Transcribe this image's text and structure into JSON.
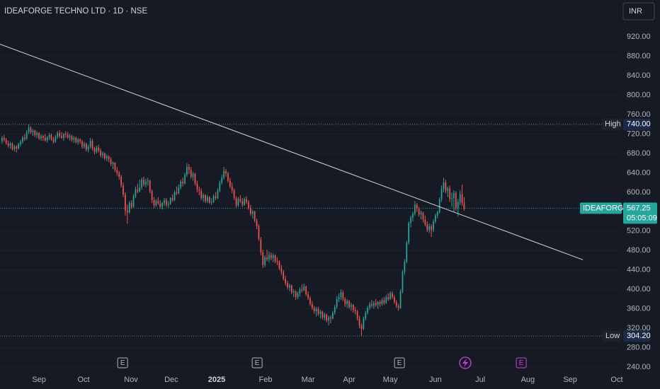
{
  "chart_data": {
    "type": "candlestick",
    "title": "IDEAFORGE TECHNO LTD · 1D · NSE",
    "currency": "INR",
    "symbol": "IDEAFORGE",
    "countdown": "05:05:09",
    "up_color": "#26a69a",
    "down_color": "#ef5350",
    "xlim": [
      -1,
      300
    ],
    "ylim": [
      224,
      996
    ],
    "yticks": [
      {
        "value": 240,
        "label": "240.00"
      },
      {
        "value": 280,
        "label": "280.00"
      },
      {
        "value": 320,
        "label": "320.00"
      },
      {
        "value": 360,
        "label": "360.00"
      },
      {
        "value": 400,
        "label": "400.00"
      },
      {
        "value": 440,
        "label": "440.00"
      },
      {
        "value": 480,
        "label": "480.00"
      },
      {
        "value": 520,
        "label": "520.00"
      },
      {
        "value": 560,
        "label": "560.00"
      },
      {
        "value": 600,
        "label": "600.00"
      },
      {
        "value": 640,
        "label": "640.00"
      },
      {
        "value": 680,
        "label": "680.00"
      },
      {
        "value": 720,
        "label": "720.00"
      },
      {
        "value": 760,
        "label": "760.00"
      },
      {
        "value": 800,
        "label": "800.00"
      },
      {
        "value": 840,
        "label": "840.00"
      },
      {
        "value": 880,
        "label": "880.00"
      },
      {
        "value": 920,
        "label": "920.00"
      }
    ],
    "xticks": [
      {
        "value": 18,
        "label": "Sep"
      },
      {
        "value": 39.7,
        "label": "Oct"
      },
      {
        "value": 62.8,
        "label": "Nov"
      },
      {
        "value": 82.4,
        "label": "Dec"
      },
      {
        "value": 104.5,
        "label": "2025"
      },
      {
        "value": 128.3,
        "label": "Feb"
      },
      {
        "value": 149,
        "label": "Mar"
      },
      {
        "value": 169,
        "label": "Apr"
      },
      {
        "value": 189,
        "label": "May"
      },
      {
        "value": 211,
        "label": "Jun"
      },
      {
        "value": 232.8,
        "label": "Jul"
      },
      {
        "value": 256,
        "label": "Aug"
      },
      {
        "value": 276.6,
        "label": "Sep"
      },
      {
        "value": 299.3,
        "label": "Oct"
      }
    ],
    "high": {
      "label": "High",
      "value": 740,
      "value_label": "740.00"
    },
    "low": {
      "label": "Low",
      "value": 304.2,
      "value_label": "304.20"
    },
    "last": {
      "value": 567.25,
      "value_label": "567.25"
    },
    "trendline": {
      "x": [
        -1,
        282.8
      ],
      "y": [
        905,
        461
      ]
    },
    "events": [
      {
        "label": "E",
        "x": 58.7,
        "color": "#b2b5be"
      },
      {
        "label": "E",
        "x": 124.2,
        "color": "#b2b5be"
      },
      {
        "label": "E",
        "x": 193.5,
        "color": "#b2b5be"
      },
      {
        "label": "E",
        "x": 252.8,
        "color": "#d13fd3"
      }
    ],
    "candles": [
      [
        705,
        716,
        700,
        712
      ],
      [
        712,
        718,
        704,
        708
      ],
      [
        708,
        712,
        698,
        701
      ],
      [
        701,
        706,
        692,
        696
      ],
      [
        696,
        704,
        690,
        700
      ],
      [
        700,
        703,
        686,
        689
      ],
      [
        689,
        698,
        684,
        694
      ],
      [
        694,
        697,
        682,
        690
      ],
      [
        690,
        702,
        688,
        699
      ],
      [
        699,
        708,
        694,
        704
      ],
      [
        704,
        716,
        700,
        713
      ],
      [
        713,
        720,
        706,
        710
      ],
      [
        710,
        728,
        708,
        724
      ],
      [
        724,
        740,
        720,
        733
      ],
      [
        733,
        736,
        720,
        724
      ],
      [
        724,
        730,
        716,
        727
      ],
      [
        727,
        729,
        714,
        718
      ],
      [
        718,
        726,
        712,
        722
      ],
      [
        722,
        724,
        708,
        711
      ],
      [
        711,
        720,
        706,
        716
      ],
      [
        716,
        718,
        706,
        712
      ],
      [
        712,
        720,
        704,
        707
      ],
      [
        707,
        716,
        702,
        713
      ],
      [
        713,
        722,
        708,
        718
      ],
      [
        718,
        721,
        706,
        709
      ],
      [
        709,
        714,
        700,
        704
      ],
      [
        704,
        718,
        702,
        714
      ],
      [
        714,
        726,
        710,
        722
      ],
      [
        722,
        728,
        712,
        716
      ],
      [
        716,
        724,
        710,
        712
      ],
      [
        712,
        722,
        706,
        720
      ],
      [
        720,
        726,
        712,
        719
      ],
      [
        719,
        724,
        710,
        713
      ],
      [
        713,
        720,
        706,
        716
      ],
      [
        716,
        718,
        704,
        708
      ],
      [
        708,
        716,
        702,
        712
      ],
      [
        712,
        715,
        700,
        703
      ],
      [
        703,
        712,
        698,
        709
      ],
      [
        709,
        711,
        700,
        705
      ],
      [
        705,
        708,
        690,
        694
      ],
      [
        694,
        704,
        690,
        700
      ],
      [
        700,
        702,
        684,
        688
      ],
      [
        688,
        698,
        682,
        694
      ],
      [
        694,
        712,
        690,
        706
      ],
      [
        706,
        710,
        686,
        690
      ],
      [
        690,
        694,
        678,
        683
      ],
      [
        683,
        696,
        680,
        692
      ],
      [
        692,
        698,
        682,
        686
      ],
      [
        686,
        690,
        672,
        676
      ],
      [
        676,
        684,
        670,
        680
      ],
      [
        680,
        682,
        666,
        670
      ],
      [
        670,
        678,
        664,
        674
      ],
      [
        674,
        676,
        662,
        668
      ],
      [
        668,
        672,
        654,
        658
      ],
      [
        658,
        664,
        648,
        661
      ],
      [
        661,
        662,
        642,
        646
      ],
      [
        646,
        652,
        634,
        640
      ],
      [
        640,
        644,
        626,
        632
      ],
      [
        632,
        636,
        610,
        614
      ],
      [
        614,
        620,
        590,
        595
      ],
      [
        595,
        600,
        552,
        562
      ],
      [
        562,
        575,
        535,
        559
      ],
      [
        559,
        582,
        556,
        578
      ],
      [
        578,
        584,
        566,
        570
      ],
      [
        570,
        596,
        568,
        592
      ],
      [
        592,
        612,
        588,
        606
      ],
      [
        606,
        618,
        598,
        602
      ],
      [
        602,
        626,
        600,
        610
      ],
      [
        610,
        630,
        605,
        626
      ],
      [
        626,
        632,
        612,
        616
      ],
      [
        616,
        628,
        610,
        622
      ],
      [
        622,
        630,
        614,
        624
      ],
      [
        624,
        626,
        598,
        602
      ],
      [
        602,
        606,
        578,
        584
      ],
      [
        584,
        590,
        568,
        573
      ],
      [
        573,
        586,
        570,
        582
      ],
      [
        582,
        590,
        574,
        577
      ],
      [
        577,
        584,
        566,
        570
      ],
      [
        570,
        580,
        564,
        578
      ],
      [
        578,
        588,
        572,
        584
      ],
      [
        584,
        588,
        570,
        574
      ],
      [
        574,
        582,
        568,
        576
      ],
      [
        576,
        590,
        574,
        588
      ],
      [
        588,
        596,
        580,
        584
      ],
      [
        584,
        604,
        582,
        600
      ],
      [
        600,
        612,
        594,
        598
      ],
      [
        598,
        616,
        596,
        610
      ],
      [
        610,
        626,
        606,
        622
      ],
      [
        622,
        630,
        612,
        618
      ],
      [
        618,
        640,
        616,
        636
      ],
      [
        636,
        660,
        632,
        652
      ],
      [
        652,
        658,
        638,
        646
      ],
      [
        646,
        652,
        628,
        632
      ],
      [
        632,
        642,
        624,
        638
      ],
      [
        638,
        640,
        614,
        618
      ],
      [
        618,
        624,
        600,
        606
      ],
      [
        606,
        612,
        594,
        603
      ],
      [
        603,
        608,
        584,
        588
      ],
      [
        588,
        598,
        580,
        594
      ],
      [
        594,
        596,
        578,
        582
      ],
      [
        582,
        594,
        578,
        590
      ],
      [
        590,
        592,
        576,
        579
      ],
      [
        579,
        588,
        574,
        580
      ],
      [
        580,
        596,
        578,
        592
      ],
      [
        592,
        600,
        584,
        588
      ],
      [
        588,
        608,
        586,
        603
      ],
      [
        603,
        624,
        600,
        620
      ],
      [
        620,
        636,
        616,
        630
      ],
      [
        630,
        652,
        626,
        644
      ],
      [
        644,
        648,
        632,
        639
      ],
      [
        639,
        642,
        620,
        624
      ],
      [
        624,
        630,
        608,
        612
      ],
      [
        612,
        620,
        598,
        604
      ],
      [
        604,
        608,
        584,
        588
      ],
      [
        588,
        592,
        568,
        573
      ],
      [
        573,
        590,
        570,
        586
      ],
      [
        586,
        594,
        578,
        582
      ],
      [
        582,
        588,
        570,
        574
      ],
      [
        574,
        590,
        572,
        586
      ],
      [
        586,
        592,
        576,
        580
      ],
      [
        580,
        584,
        564,
        568
      ],
      [
        568,
        574,
        552,
        556
      ],
      [
        556,
        564,
        546,
        560
      ],
      [
        560,
        562,
        538,
        542
      ],
      [
        542,
        546,
        524,
        530
      ],
      [
        530,
        534,
        500,
        504
      ],
      [
        504,
        508,
        470,
        476
      ],
      [
        476,
        482,
        444,
        450
      ],
      [
        450,
        470,
        446,
        466
      ],
      [
        466,
        482,
        458,
        462
      ],
      [
        462,
        478,
        456,
        471
      ],
      [
        471,
        476,
        460,
        464
      ],
      [
        464,
        474,
        456,
        470
      ],
      [
        470,
        472,
        454,
        458
      ],
      [
        458,
        466,
        450,
        457
      ],
      [
        457,
        460,
        440,
        444
      ],
      [
        444,
        450,
        430,
        436
      ],
      [
        436,
        440,
        418,
        422
      ],
      [
        422,
        428,
        408,
        413
      ],
      [
        413,
        418,
        400,
        404
      ],
      [
        404,
        412,
        396,
        408
      ],
      [
        408,
        410,
        390,
        394
      ],
      [
        394,
        400,
        384,
        396
      ],
      [
        396,
        398,
        378,
        384
      ],
      [
        384,
        396,
        380,
        392
      ],
      [
        392,
        404,
        386,
        400
      ],
      [
        400,
        410,
        394,
        398
      ],
      [
        398,
        412,
        396,
        406
      ],
      [
        406,
        408,
        386,
        390
      ],
      [
        390,
        396,
        378,
        382
      ],
      [
        382,
        386,
        366,
        370
      ],
      [
        370,
        376,
        358,
        362
      ],
      [
        362,
        366,
        350,
        355
      ],
      [
        355,
        364,
        344,
        360
      ],
      [
        360,
        364,
        346,
        350
      ],
      [
        350,
        358,
        340,
        354
      ],
      [
        354,
        356,
        338,
        342
      ],
      [
        342,
        352,
        336,
        348
      ],
      [
        348,
        350,
        332,
        336
      ],
      [
        336,
        346,
        326,
        342
      ],
      [
        342,
        346,
        330,
        340
      ],
      [
        340,
        356,
        338,
        352
      ],
      [
        352,
        368,
        348,
        364
      ],
      [
        364,
        386,
        360,
        380
      ],
      [
        380,
        392,
        374,
        384
      ],
      [
        384,
        400,
        378,
        394
      ],
      [
        394,
        398,
        376,
        380
      ],
      [
        380,
        384,
        364,
        370
      ],
      [
        370,
        380,
        362,
        376
      ],
      [
        376,
        378,
        360,
        364
      ],
      [
        364,
        372,
        356,
        368
      ],
      [
        368,
        370,
        352,
        358
      ],
      [
        358,
        364,
        348,
        355
      ],
      [
        355,
        358,
        336,
        340
      ],
      [
        340,
        346,
        320,
        326
      ],
      [
        326,
        330,
        304.2,
        319
      ],
      [
        319,
        344,
        316,
        340
      ],
      [
        340,
        356,
        336,
        352
      ],
      [
        352,
        366,
        348,
        362
      ],
      [
        362,
        374,
        358,
        370
      ],
      [
        370,
        378,
        362,
        366
      ],
      [
        366,
        376,
        360,
        372
      ],
      [
        372,
        380,
        364,
        368
      ],
      [
        368,
        376,
        360,
        374
      ],
      [
        374,
        378,
        364,
        370
      ],
      [
        370,
        382,
        366,
        378
      ],
      [
        378,
        384,
        368,
        372
      ],
      [
        372,
        388,
        370,
        384
      ],
      [
        384,
        392,
        376,
        380
      ],
      [
        380,
        396,
        378,
        392
      ],
      [
        392,
        396,
        380,
        384
      ],
      [
        384,
        388,
        370,
        374
      ],
      [
        374,
        378,
        362,
        366
      ],
      [
        366,
        370,
        356,
        362
      ],
      [
        362,
        400,
        360,
        396
      ],
      [
        396,
        440,
        392,
        436
      ],
      [
        436,
        462,
        430,
        457
      ],
      [
        457,
        500,
        454,
        496
      ],
      [
        496,
        540,
        492,
        537
      ],
      [
        537,
        552,
        528,
        548
      ],
      [
        548,
        560,
        540,
        556
      ],
      [
        556,
        582,
        552,
        574
      ],
      [
        574,
        578,
        560,
        566
      ],
      [
        566,
        570,
        550,
        554
      ],
      [
        554,
        562,
        544,
        558
      ],
      [
        558,
        560,
        538,
        544
      ],
      [
        544,
        552,
        530,
        534
      ],
      [
        534,
        540,
        518,
        522
      ],
      [
        522,
        536,
        516,
        530
      ],
      [
        530,
        534,
        508,
        522
      ],
      [
        522,
        544,
        518,
        540
      ],
      [
        540,
        556,
        536,
        552
      ],
      [
        552,
        562,
        546,
        559
      ],
      [
        559,
        590,
        556,
        586
      ],
      [
        586,
        614,
        580,
        608
      ],
      [
        608,
        630,
        600,
        620
      ],
      [
        620,
        626,
        598,
        603
      ],
      [
        603,
        612,
        590,
        608
      ],
      [
        608,
        614,
        580,
        586
      ],
      [
        586,
        600,
        570,
        588
      ],
      [
        588,
        604,
        560,
        598
      ],
      [
        598,
        602,
        562,
        568
      ],
      [
        568,
        586,
        550,
        580
      ],
      [
        580,
        604,
        574,
        596
      ],
      [
        596,
        616,
        572,
        578
      ],
      [
        578,
        590,
        562,
        567.25
      ]
    ]
  }
}
